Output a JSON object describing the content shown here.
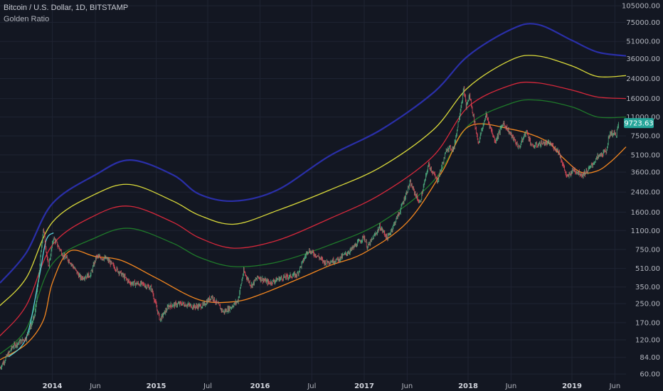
{
  "header": {
    "title": "Bitcoin / U.S. Dollar, 1D, BITSTAMP",
    "subtitle": "Golden Ratio"
  },
  "colors": {
    "background": "#131722",
    "grid": "#1f2433",
    "candle_up": "#53b987",
    "candle_down": "#eb4d5c",
    "price_tag": "#26a69a",
    "band_blue": "#2a2fa8",
    "band_yellow": "#d9d93a",
    "band_red": "#d6283b",
    "band_green": "#1f7a2a",
    "band_orange": "#f5871f",
    "band_cyan": "#5ad1d9"
  },
  "chart_data": {
    "type": "line",
    "y_scale": "log",
    "ylim": [
      52,
      118000
    ],
    "xlim": [
      "2013-07-01",
      "2019-07-10"
    ],
    "y_ticks": [
      {
        "value": 105000,
        "label": "105000.00"
      },
      {
        "value": 75000,
        "label": "75000.00"
      },
      {
        "value": 51000,
        "label": "51000.00"
      },
      {
        "value": 36000,
        "label": "36000.00"
      },
      {
        "value": 24000,
        "label": "24000.00"
      },
      {
        "value": 16000,
        "label": "16000.00"
      },
      {
        "value": 11000,
        "label": "11000.00"
      },
      {
        "value": 7500,
        "label": "7500.00"
      },
      {
        "value": 5100,
        "label": "5100.00"
      },
      {
        "value": 3600,
        "label": "3600.00"
      },
      {
        "value": 2400,
        "label": "2400.00"
      },
      {
        "value": 1600,
        "label": "1600.00"
      },
      {
        "value": 1100,
        "label": "1100.00"
      },
      {
        "value": 750,
        "label": "750.00"
      },
      {
        "value": 510,
        "label": "510.00"
      },
      {
        "value": 350,
        "label": "350.00"
      },
      {
        "value": 250,
        "label": "250.00"
      },
      {
        "value": 170,
        "label": "170.00"
      },
      {
        "value": 120,
        "label": "120.00"
      },
      {
        "value": 84,
        "label": "84.00"
      },
      {
        "value": 60,
        "label": "60.00"
      }
    ],
    "x_ticks": [
      {
        "date": "2014-01-01",
        "label": "2014",
        "bold": true
      },
      {
        "date": "2014-06-01",
        "label": "Jun",
        "bold": false
      },
      {
        "date": "2015-01-01",
        "label": "2015",
        "bold": true
      },
      {
        "date": "2015-07-01",
        "label": "Jul",
        "bold": false
      },
      {
        "date": "2016-01-01",
        "label": "2016",
        "bold": true
      },
      {
        "date": "2016-07-01",
        "label": "Jul",
        "bold": false
      },
      {
        "date": "2017-01-01",
        "label": "2017",
        "bold": true
      },
      {
        "date": "2017-06-01",
        "label": "Jun",
        "bold": false
      },
      {
        "date": "2018-01-01",
        "label": "2018",
        "bold": true
      },
      {
        "date": "2018-06-01",
        "label": "Jun",
        "bold": false
      },
      {
        "date": "2019-01-01",
        "label": "2019",
        "bold": true
      },
      {
        "date": "2019-06-01",
        "label": "Jun",
        "bold": false
      }
    ],
    "last_price": {
      "value": 9723.63,
      "label": "9723.63"
    },
    "series": [
      {
        "color": "#2a2fa8",
        "points": [
          [
            "2013-07-01",
            380
          ],
          [
            "2013-10-01",
            700
          ],
          [
            "2014-01-01",
            1900
          ],
          [
            "2014-06-01",
            3400
          ],
          [
            "2014-10-01",
            4600
          ],
          [
            "2015-03-01",
            3400
          ],
          [
            "2015-06-01",
            2300
          ],
          [
            "2015-10-01",
            2000
          ],
          [
            "2016-03-01",
            2500
          ],
          [
            "2016-09-01",
            5000
          ],
          [
            "2017-03-01",
            8500
          ],
          [
            "2017-09-01",
            18000
          ],
          [
            "2018-01-01",
            38000
          ],
          [
            "2018-06-01",
            65000
          ],
          [
            "2018-09-01",
            72000
          ],
          [
            "2019-01-01",
            52000
          ],
          [
            "2019-04-01",
            41000
          ],
          [
            "2019-07-10",
            38000
          ]
        ]
      },
      {
        "color": "#d9d93a",
        "points": [
          [
            "2013-07-01",
            240
          ],
          [
            "2013-10-01",
            420
          ],
          [
            "2014-01-01",
            1300
          ],
          [
            "2014-06-01",
            2300
          ],
          [
            "2014-10-01",
            2800
          ],
          [
            "2015-03-01",
            2000
          ],
          [
            "2015-06-01",
            1500
          ],
          [
            "2015-10-01",
            1250
          ],
          [
            "2016-03-01",
            1650
          ],
          [
            "2016-09-01",
            2500
          ],
          [
            "2017-03-01",
            4000
          ],
          [
            "2017-09-01",
            8500
          ],
          [
            "2018-01-01",
            20000
          ],
          [
            "2018-06-01",
            35000
          ],
          [
            "2018-09-01",
            38000
          ],
          [
            "2019-01-01",
            31000
          ],
          [
            "2019-04-01",
            25000
          ],
          [
            "2019-07-10",
            25500
          ]
        ]
      },
      {
        "color": "#d6283b",
        "points": [
          [
            "2013-07-01",
            130
          ],
          [
            "2013-10-01",
            240
          ],
          [
            "2014-01-01",
            820
          ],
          [
            "2014-06-01",
            1500
          ],
          [
            "2014-10-01",
            1800
          ],
          [
            "2015-03-01",
            1300
          ],
          [
            "2015-06-01",
            950
          ],
          [
            "2015-10-01",
            770
          ],
          [
            "2016-03-01",
            900
          ],
          [
            "2016-09-01",
            1400
          ],
          [
            "2017-03-01",
            2300
          ],
          [
            "2017-09-01",
            5000
          ],
          [
            "2018-01-01",
            13500
          ],
          [
            "2018-06-01",
            21000
          ],
          [
            "2018-09-01",
            22000
          ],
          [
            "2019-01-01",
            19000
          ],
          [
            "2019-04-01",
            16500
          ],
          [
            "2019-07-10",
            16000
          ]
        ]
      },
      {
        "color": "#1f7a2a",
        "points": [
          [
            "2013-07-01",
            90
          ],
          [
            "2013-10-01",
            150
          ],
          [
            "2014-01-01",
            560
          ],
          [
            "2014-06-01",
            950
          ],
          [
            "2014-10-01",
            1150
          ],
          [
            "2015-03-01",
            850
          ],
          [
            "2015-06-01",
            640
          ],
          [
            "2015-10-01",
            530
          ],
          [
            "2016-03-01",
            580
          ],
          [
            "2016-09-01",
            820
          ],
          [
            "2017-03-01",
            1300
          ],
          [
            "2017-09-01",
            3000
          ],
          [
            "2018-01-01",
            9200
          ],
          [
            "2018-06-01",
            14500
          ],
          [
            "2018-09-01",
            15500
          ],
          [
            "2019-01-01",
            13500
          ],
          [
            "2019-04-01",
            11000
          ],
          [
            "2019-07-10",
            11000
          ]
        ]
      },
      {
        "color": "#f5871f",
        "points": [
          [
            "2013-07-01",
            80
          ],
          [
            "2013-10-01",
            110
          ],
          [
            "2013-12-01",
            180
          ],
          [
            "2014-01-01",
            380
          ],
          [
            "2014-03-01",
            720
          ],
          [
            "2014-06-01",
            650
          ],
          [
            "2014-09-01",
            600
          ],
          [
            "2015-01-01",
            420
          ],
          [
            "2015-06-01",
            270
          ],
          [
            "2015-10-01",
            260
          ],
          [
            "2016-01-01",
            300
          ],
          [
            "2016-06-01",
            430
          ],
          [
            "2016-09-01",
            540
          ],
          [
            "2017-01-01",
            700
          ],
          [
            "2017-06-01",
            1300
          ],
          [
            "2017-10-01",
            3600
          ],
          [
            "2018-01-01",
            9000
          ],
          [
            "2018-06-01",
            8600
          ],
          [
            "2018-10-01",
            6800
          ],
          [
            "2018-12-01",
            4800
          ],
          [
            "2019-02-01",
            3600
          ],
          [
            "2019-04-01",
            3700
          ],
          [
            "2019-05-20",
            4500
          ],
          [
            "2019-07-10",
            6000
          ]
        ]
      },
      {
        "color": "#5ad1d9",
        "points": [
          [
            "2013-08-01",
            85
          ],
          [
            "2013-10-01",
            125
          ],
          [
            "2013-11-15",
            420
          ],
          [
            "2013-12-10",
            900
          ],
          [
            "2014-01-05",
            1050
          ]
        ]
      }
    ],
    "price": [
      [
        "2013-07-01",
        68
      ],
      [
        "2013-08-15",
        105
      ],
      [
        "2013-10-01",
        125
      ],
      [
        "2013-11-01",
        200
      ],
      [
        "2013-11-30",
        1150
      ],
      [
        "2013-12-18",
        520
      ],
      [
        "2014-01-05",
        950
      ],
      [
        "2014-02-10",
        650
      ],
      [
        "2014-03-01",
        600
      ],
      [
        "2014-04-10",
        420
      ],
      [
        "2014-05-15",
        450
      ],
      [
        "2014-06-05",
        650
      ],
      [
        "2014-07-10",
        620
      ],
      [
        "2014-08-15",
        500
      ],
      [
        "2014-10-01",
        380
      ],
      [
        "2014-11-15",
        370
      ],
      [
        "2014-12-15",
        340
      ],
      [
        "2015-01-14",
        180
      ],
      [
        "2015-02-15",
        240
      ],
      [
        "2015-04-01",
        250
      ],
      [
        "2015-05-15",
        235
      ],
      [
        "2015-06-15",
        240
      ],
      [
        "2015-07-15",
        290
      ],
      [
        "2015-08-25",
        210
      ],
      [
        "2015-09-20",
        232
      ],
      [
        "2015-10-15",
        265
      ],
      [
        "2015-11-04",
        480
      ],
      [
        "2015-12-01",
        360
      ],
      [
        "2015-12-25",
        430
      ],
      [
        "2016-02-01",
        380
      ],
      [
        "2016-03-15",
        420
      ],
      [
        "2016-05-10",
        450
      ],
      [
        "2016-06-17",
        740
      ],
      [
        "2016-07-20",
        660
      ],
      [
        "2016-08-15",
        575
      ],
      [
        "2016-10-01",
        610
      ],
      [
        "2016-11-15",
        740
      ],
      [
        "2016-12-31",
        970
      ],
      [
        "2017-01-12",
        780
      ],
      [
        "2017-02-25",
        1190
      ],
      [
        "2017-03-24",
        940
      ],
      [
        "2017-05-05",
        1600
      ],
      [
        "2017-06-11",
        2900
      ],
      [
        "2017-07-15",
        1900
      ],
      [
        "2017-08-15",
        4200
      ],
      [
        "2017-09-15",
        3000
      ],
      [
        "2017-10-20",
        5900
      ],
      [
        "2017-11-12",
        5800
      ],
      [
        "2017-12-17",
        19500
      ],
      [
        "2017-12-25",
        13500
      ],
      [
        "2018-01-06",
        17000
      ],
      [
        "2018-02-06",
        6500
      ],
      [
        "2018-03-05",
        11500
      ],
      [
        "2018-04-06",
        6700
      ],
      [
        "2018-05-05",
        9800
      ],
      [
        "2018-06-29",
        5900
      ],
      [
        "2018-07-25",
        8300
      ],
      [
        "2018-08-14",
        6000
      ],
      [
        "2018-09-20",
        6500
      ],
      [
        "2018-10-15",
        6400
      ],
      [
        "2018-11-15",
        5500
      ],
      [
        "2018-12-15",
        3200
      ],
      [
        "2019-01-05",
        3800
      ],
      [
        "2019-02-07",
        3400
      ],
      [
        "2019-03-01",
        3800
      ],
      [
        "2019-04-02",
        4900
      ],
      [
        "2019-05-01",
        5500
      ],
      [
        "2019-05-15",
        8000
      ],
      [
        "2019-06-05",
        7700
      ],
      [
        "2019-06-15",
        9700
      ]
    ]
  }
}
